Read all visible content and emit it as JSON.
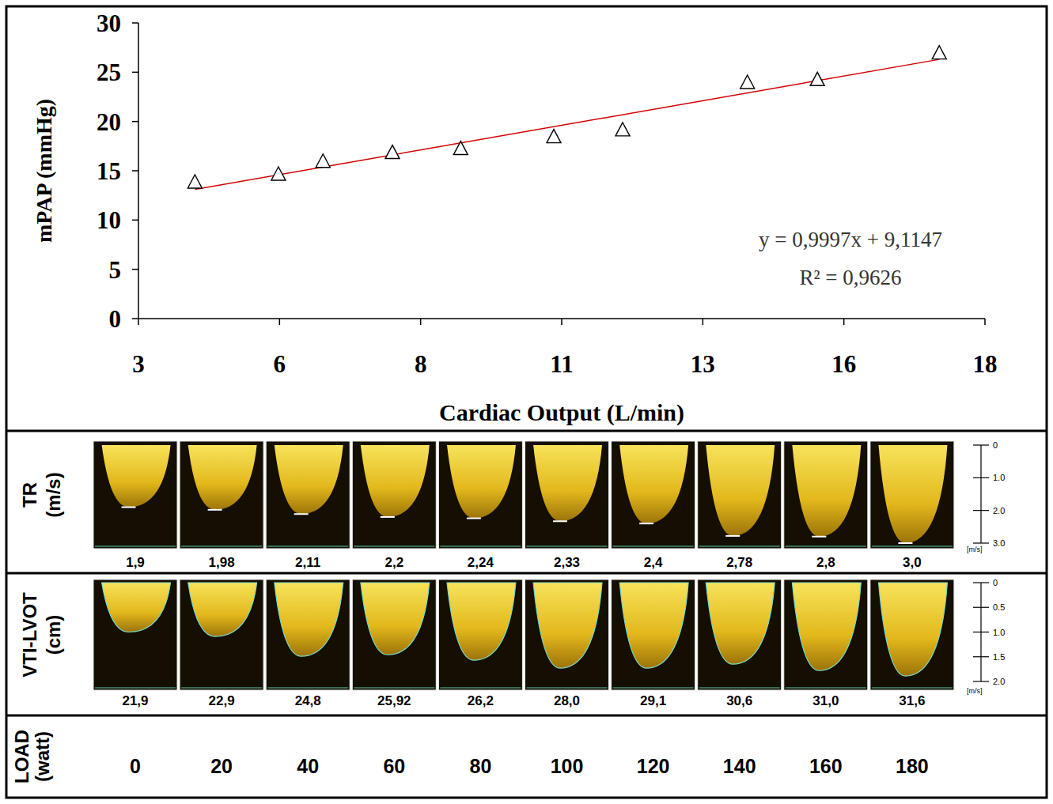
{
  "chart_data": {
    "type": "scatter",
    "x_label": "Cardiac Output (L/min)",
    "y_label": "mPAP (mmHg)",
    "x": [
      4.0,
      5.48,
      6.27,
      7.5,
      8.71,
      10.36,
      11.58,
      13.79,
      15.03,
      17.19
    ],
    "values": [
      13.8,
      14.6,
      15.9,
      16.8,
      17.2,
      18.4,
      19.1,
      23.9,
      24.2,
      26.9
    ],
    "marker": "triangle",
    "color": "#000000",
    "xlim": [
      3,
      18
    ],
    "xticks": [
      3,
      {
        "value": 5.5,
        "label": "6"
      },
      8,
      {
        "value": 10.5,
        "label": "11"
      },
      13,
      {
        "value": 15.5,
        "label": "16"
      },
      18
    ],
    "ylim": [
      0,
      30
    ],
    "yticks": [
      0,
      5,
      10,
      15,
      20,
      25,
      30
    ],
    "grid": false,
    "trendline": {
      "x": [
        4.0,
        17.19
      ],
      "values": [
        13.11,
        26.3
      ],
      "color": "#d40000",
      "equation": "y = 0,9997x + 9,1147",
      "r_squared": "R² = 0,9626"
    }
  },
  "echo_rows": [
    {
      "label": "TR (m/s)",
      "scale": {
        "unit": "[m/s]",
        "lim": [
          0,
          3.0
        ],
        "ticks": [
          0,
          {
            "value": 1,
            "label": "1.0"
          },
          {
            "value": 2,
            "label": "2.0"
          },
          {
            "value": 3,
            "label": "3.0"
          }
        ]
      },
      "values": [
        1.9,
        1.98,
        2.11,
        2.2,
        2.24,
        2.33,
        2.4,
        2.78,
        2.8,
        3.0
      ],
      "value_labels": [
        "1,9",
        "1,98",
        "2,11",
        "2,2",
        "2,24",
        "2,33",
        "2,4",
        "2,78",
        "2,8",
        "3,0"
      ]
    },
    {
      "label": "VTI-LVOT (cm)",
      "scale": {
        "unit": "[m/s]",
        "lim": [
          0,
          2.0
        ],
        "ticks": [
          0,
          0.5,
          {
            "value": 1,
            "label": "1.0"
          },
          1.5,
          {
            "value": 2,
            "label": "2.0"
          }
        ]
      },
      "peak_values": [
        1.0,
        1.09,
        1.49,
        1.46,
        1.57,
        1.73,
        1.73,
        1.65,
        1.78,
        1.89
      ],
      "values": [
        21.9,
        22.9,
        24.8,
        25.92,
        26.2,
        28.0,
        29.1,
        30.6,
        31.0,
        31.6
      ],
      "value_labels": [
        "21,9",
        "22,9",
        "24,8",
        "25,92",
        "26,2",
        "28,0",
        "29,1",
        "30,6",
        "31,0",
        "31,6"
      ]
    }
  ],
  "load": {
    "label": "LOAD (watt)",
    "values": [
      0,
      20,
      40,
      60,
      80,
      100,
      120,
      140,
      160,
      180
    ]
  }
}
